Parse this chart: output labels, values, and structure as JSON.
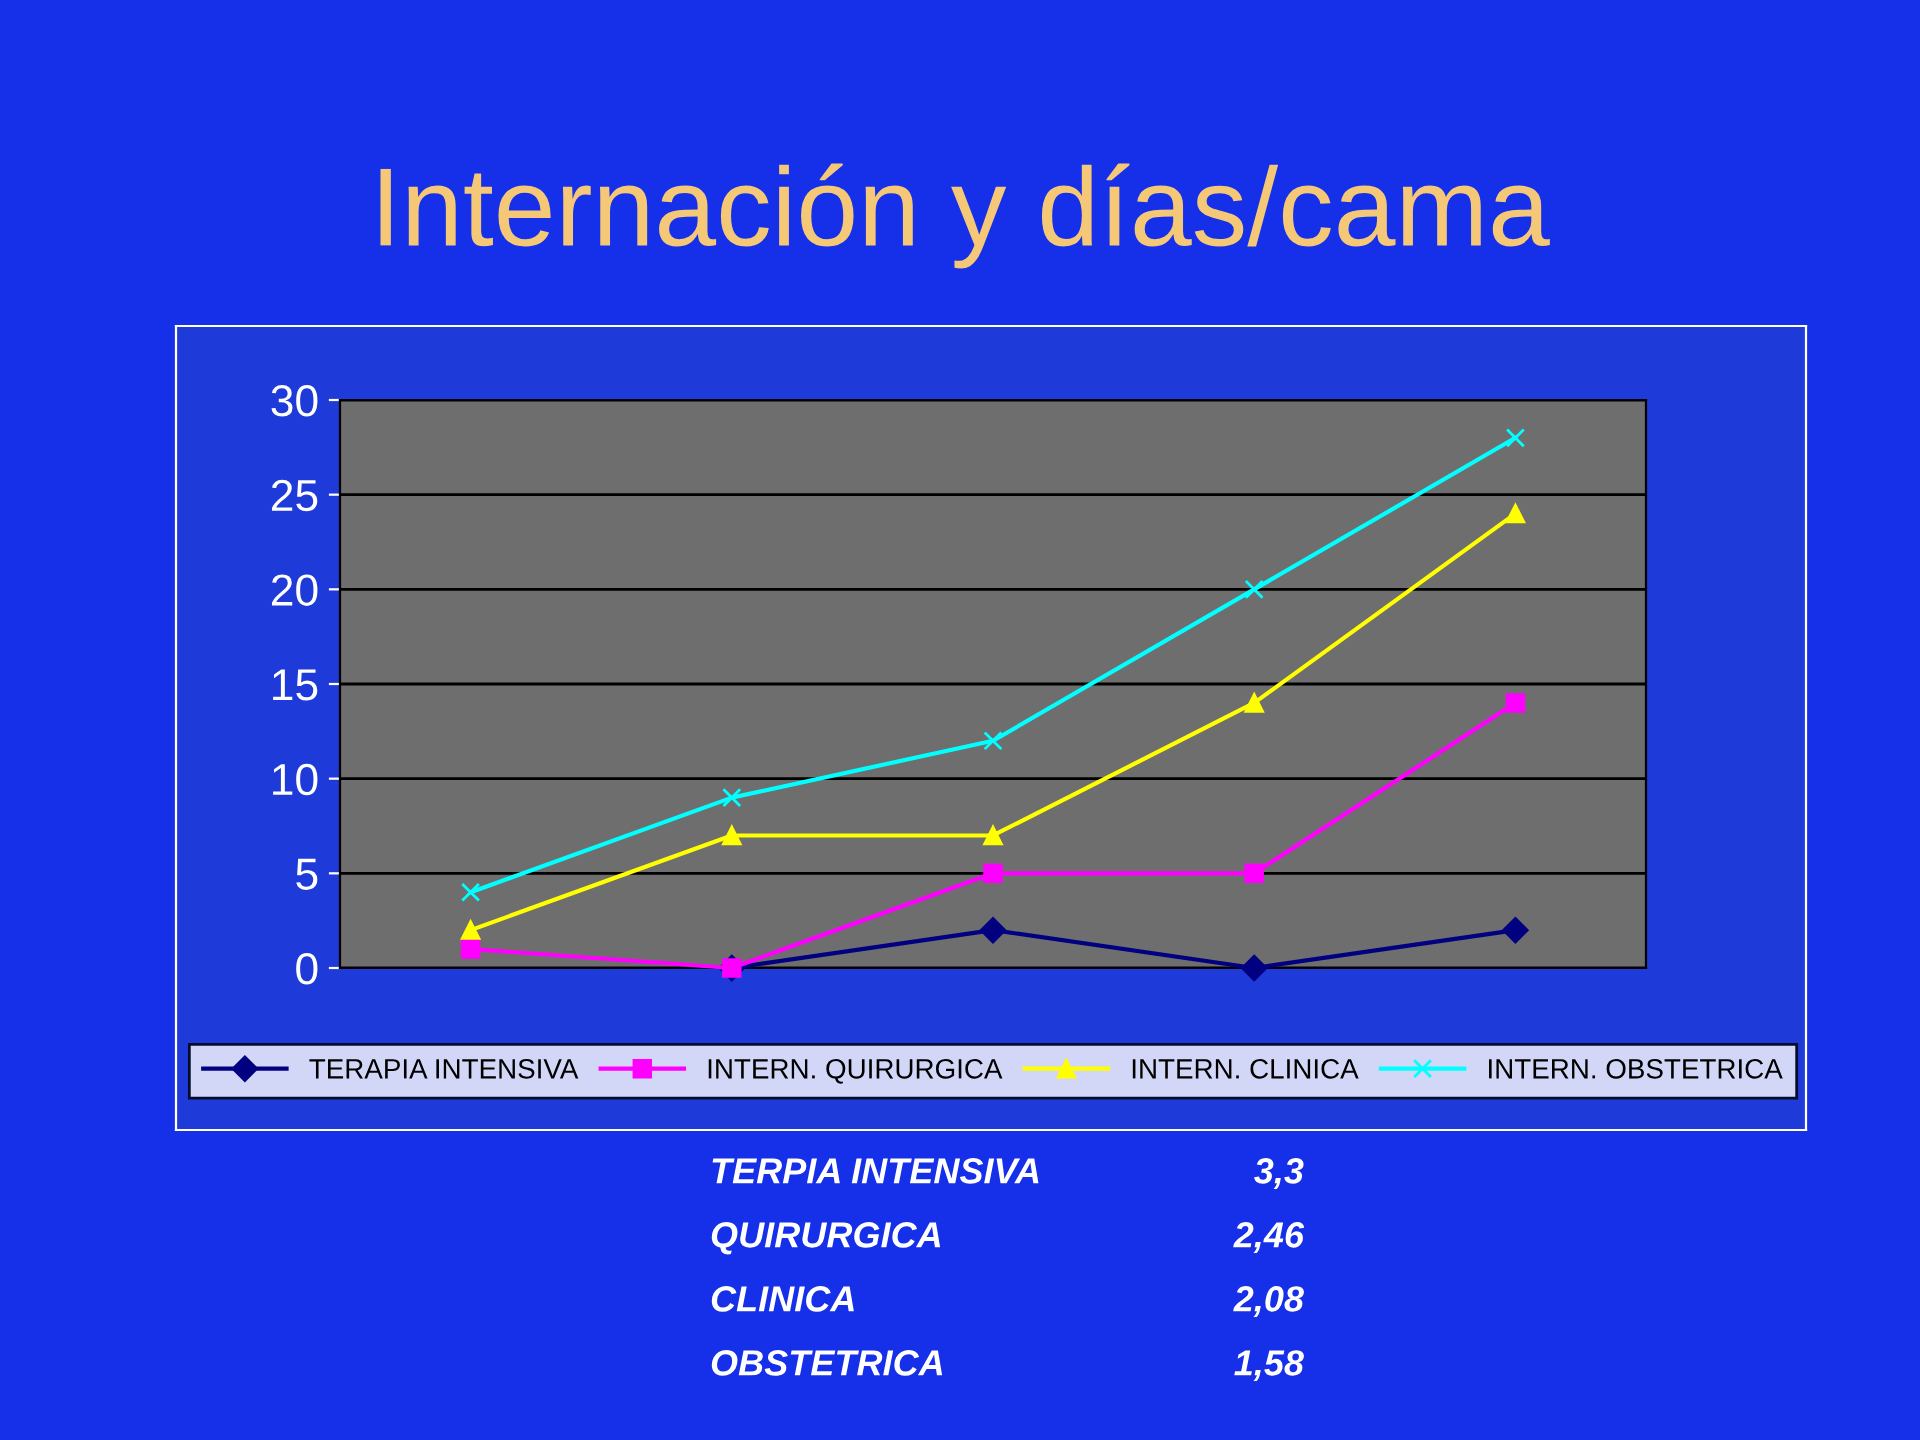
{
  "chart_data": {
    "type": "line",
    "title": "Internación y días/cama",
    "categories": [
      null,
      null,
      null,
      null,
      null
    ],
    "series": [
      {
        "name": "TERAPIA INTENSIVA",
        "color": "#000080",
        "marker": "diamond",
        "values": [
          null,
          0,
          2,
          0,
          2
        ]
      },
      {
        "name": "INTERN. QUIRURGICA",
        "color": "#ff00ff",
        "marker": "square",
        "values": [
          1,
          0,
          5,
          5,
          14
        ]
      },
      {
        "name": "INTERN. CLINICA",
        "color": "#ffff00",
        "marker": "triangle",
        "values": [
          2,
          7,
          7,
          14,
          24
        ]
      },
      {
        "name": "INTERN. OBSTETRICA",
        "color": "#00ffff",
        "marker": "cross",
        "values": [
          4,
          9,
          12,
          20,
          28
        ]
      }
    ],
    "ylim": [
      0,
      30
    ],
    "yticks": [
      0,
      5,
      10,
      15,
      20,
      25,
      30
    ],
    "grid": "y",
    "legend": "bottom",
    "annotations": [
      "TERPIA INTENSIVA",
      "3,3",
      "QUIRURGICA",
      "2,46",
      "CLINICA",
      "2,08",
      "OBSTETRICA",
      "1,58"
    ]
  }
}
